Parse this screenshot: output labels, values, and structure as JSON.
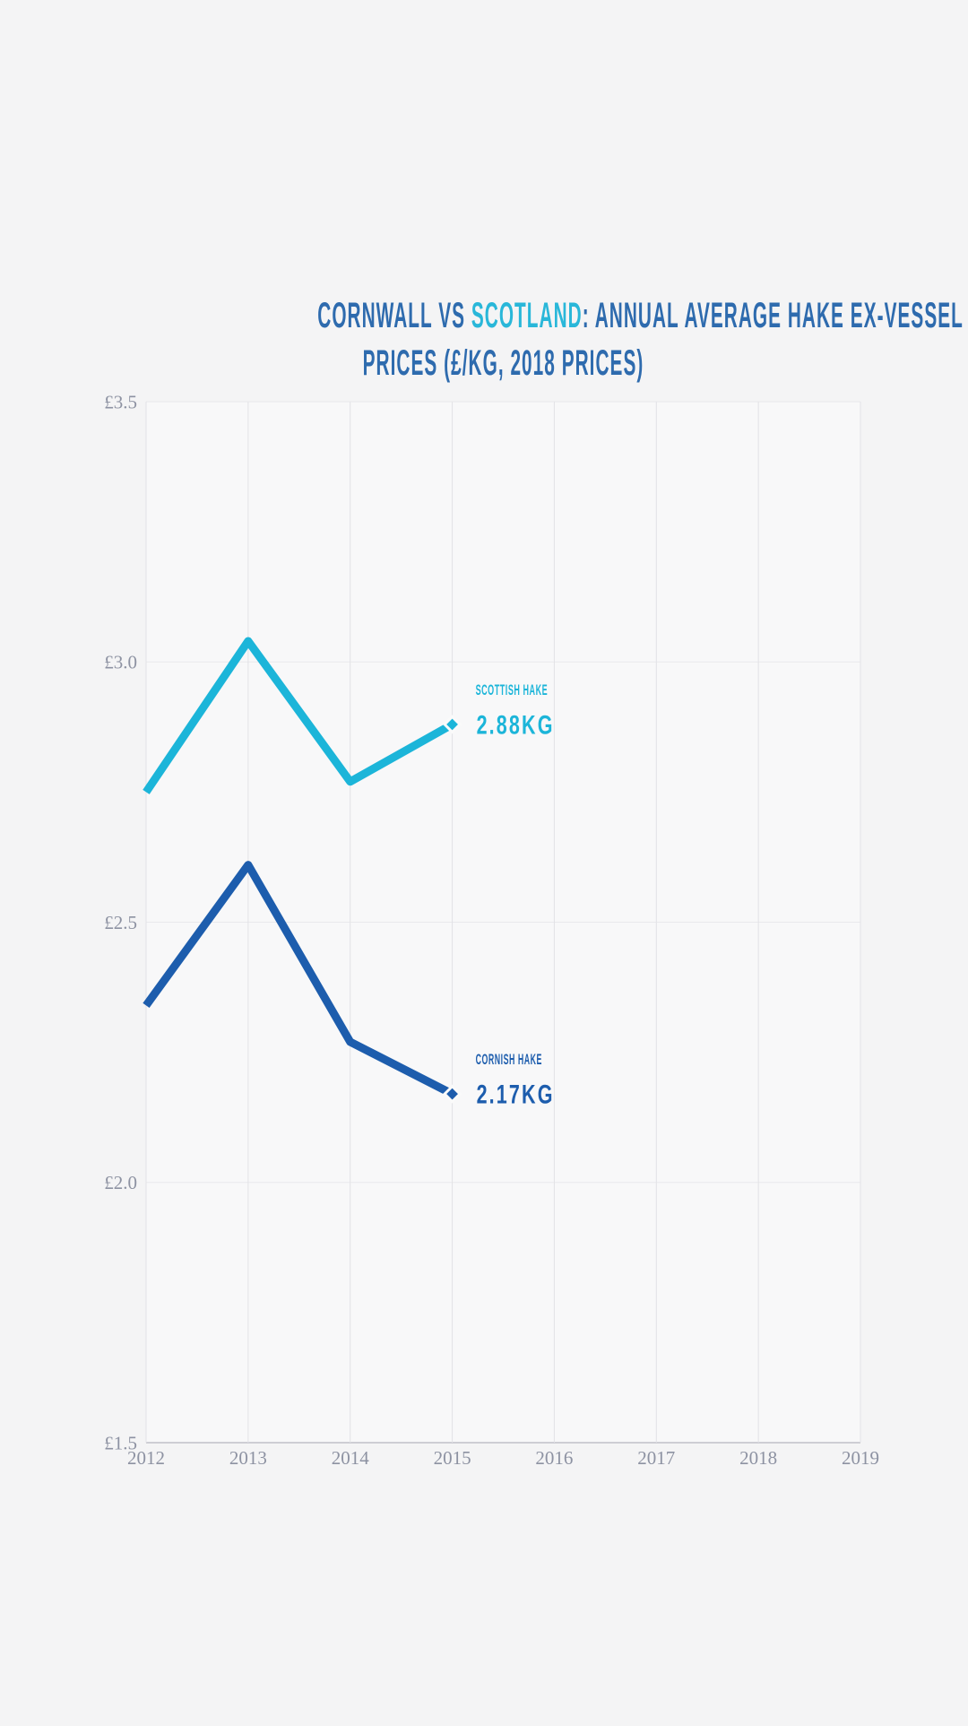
{
  "page": {
    "background": "#f4f4f5"
  },
  "title": {
    "parts": [
      {
        "text": "CORNWALL VS ",
        "color": "#2e6bae"
      },
      {
        "text": "SCOTLAND",
        "color": "#29b7d9"
      },
      {
        "text": ": ANNUAL AVERAGE HAKE EX-VESSEL",
        "color": "#2e6bae"
      }
    ],
    "line2": "PRICES (£/KG, 2018 PRICES)",
    "line2_color": "#2e6bae"
  },
  "chart_data": {
    "type": "line",
    "title": "Cornwall vs Scotland: Annual average hake ex-vessel prices (£/kg, 2018 prices)",
    "x": [
      2012,
      2013,
      2014,
      2015
    ],
    "series": [
      {
        "name": "Scottish hake",
        "color": "#1cb5d9",
        "values": [
          2.75,
          3.04,
          2.77,
          2.88
        ],
        "end_label": {
          "name": "SCOTTISH HAKE",
          "value": "2.88KG"
        }
      },
      {
        "name": "Cornish hake",
        "color": "#1d5dad",
        "values": [
          2.34,
          2.61,
          2.27,
          2.17
        ],
        "end_label": {
          "name": "CORNISH HAKE",
          "value": "2.17KG"
        }
      }
    ],
    "xlim": [
      2012,
      2019
    ],
    "ylim": [
      1.5,
      3.5
    ],
    "x_ticks": [
      {
        "value": 2012,
        "label": "2012"
      },
      {
        "value": 2013,
        "label": "2013"
      },
      {
        "value": 2014,
        "label": "2014"
      },
      {
        "value": 2015,
        "label": "2015"
      },
      {
        "value": 2016,
        "label": "2016"
      },
      {
        "value": 2017,
        "label": "2017"
      },
      {
        "value": 2018,
        "label": "2018"
      },
      {
        "value": 2019,
        "label": "2019"
      }
    ],
    "y_ticks": [
      {
        "value": 3.5,
        "label": "£3.5"
      },
      {
        "value": 3.0,
        "label": "£3.0"
      },
      {
        "value": 2.5,
        "label": "£2.5"
      },
      {
        "value": 2.0,
        "label": "£2.0"
      },
      {
        "value": 1.5,
        "label": "£1.5"
      }
    ],
    "grid": true,
    "legend_position": "none",
    "marker": "diamond",
    "axis_text_color": "#8d92a2",
    "grid_color_vertical": "#e2e2e6",
    "grid_color_horizontal": "#e9e9ec",
    "axis_line_color": "#cdcdd4",
    "plot_background": "#f8f8f9"
  }
}
